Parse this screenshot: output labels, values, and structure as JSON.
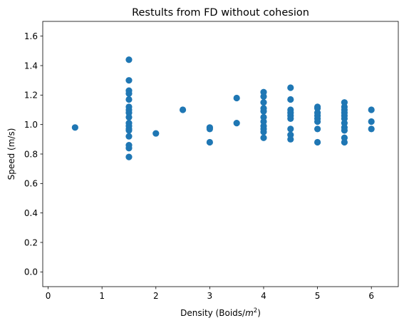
{
  "chart_data": {
    "type": "scatter",
    "title": "Restults from FD without cohesion",
    "xlabel_prefix": "Density (Boids/",
    "xlabel_unit": "m",
    "xlabel_exp": "2",
    "xlabel_suffix": ")",
    "ylabel": "Speed (m/s)",
    "xlim": [
      -0.1,
      6.5
    ],
    "ylim": [
      -0.1,
      1.7
    ],
    "xticks": [
      0,
      1,
      2,
      3,
      4,
      5,
      6
    ],
    "xtick_labels": [
      "0",
      "1",
      "2",
      "3",
      "4",
      "5",
      "6"
    ],
    "yticks": [
      0.0,
      0.2,
      0.4,
      0.6,
      0.8,
      1.0,
      1.2,
      1.4,
      1.6
    ],
    "ytick_labels": [
      "0.0",
      "0.2",
      "0.4",
      "0.6",
      "0.8",
      "1.0",
      "1.2",
      "1.4",
      "1.6"
    ],
    "grid": false,
    "marker_color": "#1f77b4",
    "points": [
      {
        "x": 0.5,
        "y": 0.98
      },
      {
        "x": 1.5,
        "y": 1.44
      },
      {
        "x": 1.5,
        "y": 1.3
      },
      {
        "x": 1.5,
        "y": 1.23
      },
      {
        "x": 1.5,
        "y": 1.21
      },
      {
        "x": 1.5,
        "y": 1.17
      },
      {
        "x": 1.5,
        "y": 1.12
      },
      {
        "x": 1.5,
        "y": 1.1
      },
      {
        "x": 1.5,
        "y": 1.08
      },
      {
        "x": 1.5,
        "y": 1.05
      },
      {
        "x": 1.5,
        "y": 1.01
      },
      {
        "x": 1.5,
        "y": 0.99
      },
      {
        "x": 1.5,
        "y": 0.97
      },
      {
        "x": 1.5,
        "y": 0.96
      },
      {
        "x": 1.5,
        "y": 0.92
      },
      {
        "x": 1.5,
        "y": 0.86
      },
      {
        "x": 1.5,
        "y": 0.84
      },
      {
        "x": 1.5,
        "y": 0.78
      },
      {
        "x": 2.0,
        "y": 0.94
      },
      {
        "x": 2.5,
        "y": 1.1
      },
      {
        "x": 3.0,
        "y": 0.98
      },
      {
        "x": 3.0,
        "y": 0.97
      },
      {
        "x": 3.0,
        "y": 0.88
      },
      {
        "x": 3.5,
        "y": 1.18
      },
      {
        "x": 3.5,
        "y": 1.01
      },
      {
        "x": 4.0,
        "y": 1.22
      },
      {
        "x": 4.0,
        "y": 1.19
      },
      {
        "x": 4.0,
        "y": 1.15
      },
      {
        "x": 4.0,
        "y": 1.11
      },
      {
        "x": 4.0,
        "y": 1.09
      },
      {
        "x": 4.0,
        "y": 1.05
      },
      {
        "x": 4.0,
        "y": 1.02
      },
      {
        "x": 4.0,
        "y": 0.99
      },
      {
        "x": 4.0,
        "y": 0.97
      },
      {
        "x": 4.0,
        "y": 0.95
      },
      {
        "x": 4.0,
        "y": 0.91
      },
      {
        "x": 4.5,
        "y": 1.25
      },
      {
        "x": 4.5,
        "y": 1.17
      },
      {
        "x": 4.5,
        "y": 1.1
      },
      {
        "x": 4.5,
        "y": 1.08
      },
      {
        "x": 4.5,
        "y": 1.06
      },
      {
        "x": 4.5,
        "y": 1.04
      },
      {
        "x": 4.5,
        "y": 0.97
      },
      {
        "x": 4.5,
        "y": 0.93
      },
      {
        "x": 4.5,
        "y": 0.9
      },
      {
        "x": 5.0,
        "y": 1.12
      },
      {
        "x": 5.0,
        "y": 1.11
      },
      {
        "x": 5.0,
        "y": 1.08
      },
      {
        "x": 5.0,
        "y": 1.06
      },
      {
        "x": 5.0,
        "y": 1.04
      },
      {
        "x": 5.0,
        "y": 1.02
      },
      {
        "x": 5.0,
        "y": 0.97
      },
      {
        "x": 5.0,
        "y": 0.88
      },
      {
        "x": 5.5,
        "y": 1.15
      },
      {
        "x": 5.5,
        "y": 1.12
      },
      {
        "x": 5.5,
        "y": 1.1
      },
      {
        "x": 5.5,
        "y": 1.08
      },
      {
        "x": 5.5,
        "y": 1.06
      },
      {
        "x": 5.5,
        "y": 1.04
      },
      {
        "x": 5.5,
        "y": 1.01
      },
      {
        "x": 5.5,
        "y": 0.98
      },
      {
        "x": 5.5,
        "y": 0.96
      },
      {
        "x": 5.5,
        "y": 0.91
      },
      {
        "x": 5.5,
        "y": 0.88
      },
      {
        "x": 6.0,
        "y": 1.1
      },
      {
        "x": 6.0,
        "y": 1.02
      },
      {
        "x": 6.0,
        "y": 0.97
      }
    ]
  }
}
